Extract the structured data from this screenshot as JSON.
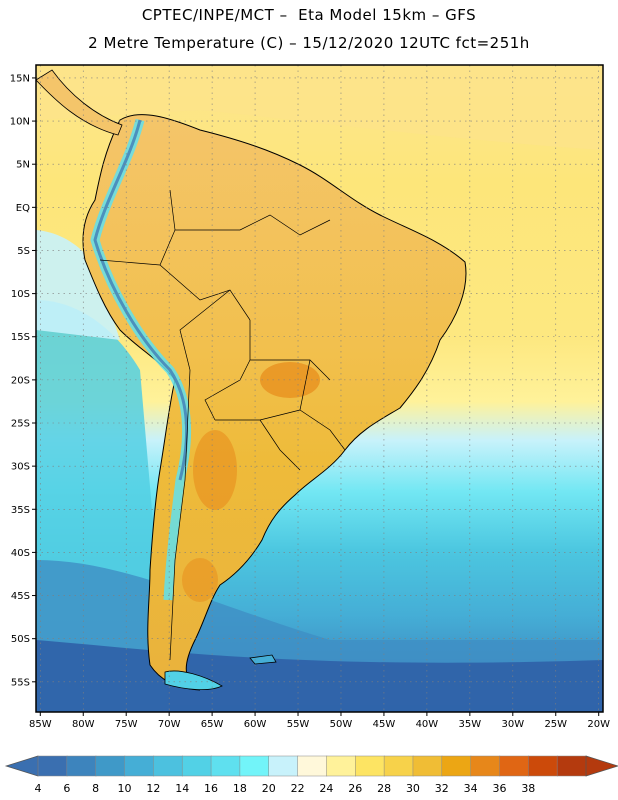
{
  "header": {
    "line1": "CPTEC/INPE/MCT –  Eta Model 15km – GFS",
    "line2": "2 Metre Temperature (C) – 15/12/2020 12UTC fct=251h"
  },
  "map_data": {
    "region": "South America",
    "variable": "2 Metre Temperature",
    "units": "C",
    "lat_ticks": [
      "15N",
      "10N",
      "5N",
      "EQ",
      "5S",
      "10S",
      "15S",
      "20S",
      "25S",
      "30S",
      "35S",
      "40S",
      "45S",
      "50S",
      "55S"
    ],
    "lat_values": [
      15,
      10,
      5,
      0,
      -5,
      -10,
      -15,
      -20,
      -25,
      -30,
      -35,
      -40,
      -45,
      -50,
      -55
    ],
    "lon_ticks": [
      "85W",
      "80W",
      "75W",
      "70W",
      "65W",
      "60W",
      "55W",
      "50W",
      "45W",
      "40W",
      "35W",
      "30W",
      "25W",
      "20W"
    ],
    "lon_values": [
      -85,
      -80,
      -75,
      -70,
      -65,
      -60,
      -55,
      -50,
      -45,
      -40,
      -35,
      -30,
      -25,
      -20
    ],
    "lon_range": [
      -85.5,
      -19.5
    ],
    "lat_range": [
      -58.5,
      16.5
    ],
    "grid": "dotted"
  },
  "colorbar": {
    "labels": [
      "4",
      "6",
      "8",
      "10",
      "12",
      "14",
      "16",
      "18",
      "20",
      "22",
      "24",
      "26",
      "28",
      "30",
      "32",
      "34",
      "36",
      "38"
    ],
    "colors": [
      "#3a6fb0",
      "#3d84bd",
      "#3f99c8",
      "#45aed6",
      "#4cc1df",
      "#52d1e6",
      "#5fe0ef",
      "#72f4f9",
      "#c8f2fb",
      "#fff8da",
      "#fff29a",
      "#fde463",
      "#f7d24a",
      "#f0bd35",
      "#eca614",
      "#e7871a",
      "#e06614",
      "#cc4a0a",
      "#b43a0e"
    ]
  }
}
